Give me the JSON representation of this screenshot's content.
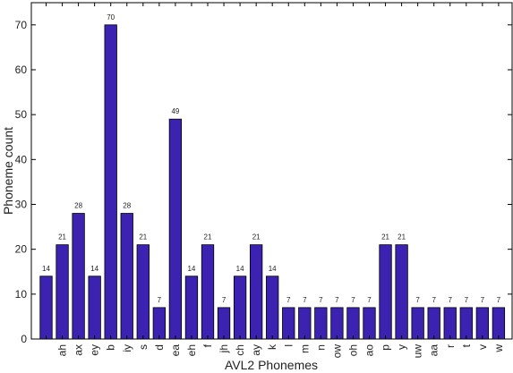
{
  "chart_data": {
    "type": "bar",
    "xlabel": "AVL2 Phonemes",
    "ylabel": "Phoneme count",
    "ylim": [
      0,
      75
    ],
    "yticks": [
      0,
      10,
      20,
      30,
      40,
      50,
      60,
      70
    ],
    "categories": [
      "",
      "ah",
      "ax",
      "ey",
      "b",
      "iy",
      "s",
      "d",
      "ea",
      "eh",
      "f",
      "jh",
      "ch",
      "ay",
      "k",
      "l",
      "m",
      "n",
      "ow",
      "oh",
      "ao",
      "p",
      "y",
      "uw",
      "aa",
      "r",
      "t",
      "v",
      "w"
    ],
    "values": [
      14,
      21,
      28,
      14,
      70,
      28,
      21,
      7,
      49,
      14,
      21,
      7,
      14,
      21,
      14,
      7,
      7,
      7,
      7,
      7,
      7,
      21,
      21,
      7,
      7,
      7,
      7,
      7,
      7
    ],
    "data_labels": [
      "14",
      "21",
      "28",
      "14",
      "70",
      "28",
      "21",
      "7",
      "49",
      "14",
      "21",
      "7",
      "14",
      "21",
      "14",
      "7",
      "7",
      "7",
      "7",
      "7",
      "7",
      "21",
      "21",
      "7",
      "7",
      "7",
      "7",
      "7",
      "7"
    ],
    "bar_color": "#3b22b0",
    "bar_edge_color": "#000000",
    "grid": false,
    "legend": "none"
  }
}
